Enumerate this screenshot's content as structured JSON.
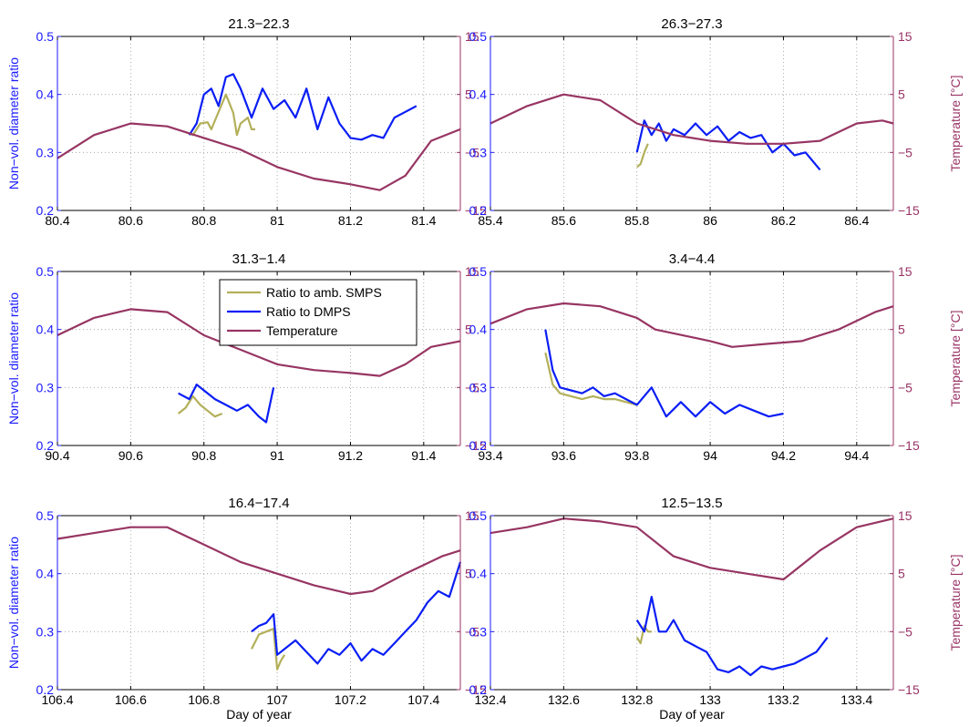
{
  "figure": {
    "x_axis_label": "Day of year",
    "left_axis_label": "Non−vol. diameter ratio",
    "right_axis_label": "Temperature [°C]"
  },
  "legend": {
    "placement": "inside middle-left panel, top-right",
    "entries": [
      "Ratio to amb. SMPS",
      "Ratio to DMPS",
      "Temperature"
    ]
  },
  "colors": {
    "smps": "#b3b05a",
    "dmps": "#0a1ef5",
    "temperature": "#973563",
    "left_axis": "#1a1aff",
    "right_axis": "#993366"
  },
  "chart_data": [
    {
      "type": "line",
      "title": "21.3−22.3",
      "xlim": [
        80.4,
        81.5
      ],
      "xticks": [
        "80.4",
        "80.6",
        "80.8",
        "81",
        "81.2",
        "81.4"
      ],
      "ylim": [
        0.2,
        0.5
      ],
      "yticks": [
        "0.2",
        "0.3",
        "0.4",
        "0.5"
      ],
      "y2lim": [
        -15,
        15
      ],
      "y2ticks": [
        "−15",
        "−5",
        "5",
        "15"
      ],
      "grid": true,
      "series": [
        {
          "name": "Ratio to amb. SMPS",
          "axis": "left",
          "x": [
            80.75,
            80.77,
            80.79,
            80.81,
            80.82,
            80.84,
            80.86,
            80.88,
            80.89,
            80.9,
            80.92,
            80.93,
            80.94
          ],
          "y": [
            0.335,
            0.33,
            0.35,
            0.352,
            0.34,
            0.37,
            0.4,
            0.368,
            0.33,
            0.35,
            0.36,
            0.34,
            0.34
          ]
        },
        {
          "name": "Ratio to DMPS",
          "axis": "left",
          "x": [
            80.76,
            80.78,
            80.8,
            80.82,
            80.84,
            80.86,
            80.88,
            80.9,
            80.93,
            80.96,
            80.99,
            81.02,
            81.05,
            81.08,
            81.11,
            81.14,
            81.17,
            81.2,
            81.23,
            81.26,
            81.29,
            81.32,
            81.35,
            81.38
          ],
          "y": [
            0.33,
            0.35,
            0.4,
            0.41,
            0.38,
            0.43,
            0.435,
            0.41,
            0.36,
            0.41,
            0.375,
            0.39,
            0.36,
            0.41,
            0.34,
            0.395,
            0.35,
            0.325,
            0.322,
            0.33,
            0.325,
            0.36,
            0.37,
            0.38
          ]
        },
        {
          "name": "Temperature",
          "axis": "right",
          "x": [
            80.4,
            80.5,
            80.6,
            80.7,
            80.8,
            80.9,
            81.0,
            81.1,
            81.2,
            81.28,
            81.35,
            81.42,
            81.5
          ],
          "y": [
            -6,
            -2,
            0,
            -0.5,
            -2.5,
            -4.5,
            -7.5,
            -9.5,
            -10.5,
            -11.5,
            -9,
            -3,
            -1
          ]
        }
      ]
    },
    {
      "type": "line",
      "title": "26.3−27.3",
      "xlim": [
        85.4,
        86.5
      ],
      "xticks": [
        "85.4",
        "85.6",
        "85.8",
        "86",
        "86.2",
        "86.4"
      ],
      "ylim": [
        0.2,
        0.5
      ],
      "yticks": [
        "0.2",
        "0.3",
        "0.4",
        "0.5"
      ],
      "y2lim": [
        -15,
        15
      ],
      "y2ticks": [
        "−15",
        "−5",
        "5",
        "15"
      ],
      "grid": true,
      "series": [
        {
          "name": "Ratio to amb. SMPS",
          "axis": "left",
          "x": [
            85.8,
            85.81,
            85.82,
            85.83
          ],
          "y": [
            0.275,
            0.28,
            0.3,
            0.315
          ]
        },
        {
          "name": "Ratio to DMPS",
          "axis": "left",
          "x": [
            85.8,
            85.82,
            85.84,
            85.86,
            85.88,
            85.9,
            85.93,
            85.96,
            85.99,
            86.02,
            86.05,
            86.08,
            86.11,
            86.14,
            86.17,
            86.2,
            86.23,
            86.26,
            86.3
          ],
          "y": [
            0.3,
            0.355,
            0.33,
            0.35,
            0.32,
            0.34,
            0.33,
            0.35,
            0.33,
            0.345,
            0.32,
            0.335,
            0.325,
            0.33,
            0.3,
            0.315,
            0.295,
            0.3,
            0.27
          ]
        },
        {
          "name": "Temperature",
          "axis": "right",
          "x": [
            85.4,
            85.5,
            85.6,
            85.7,
            85.8,
            85.9,
            86.0,
            86.1,
            86.2,
            86.3,
            86.4,
            86.47,
            86.5
          ],
          "y": [
            0,
            3,
            5,
            4,
            0,
            -2,
            -3,
            -3.5,
            -3.5,
            -3,
            0,
            0.5,
            0
          ]
        }
      ]
    },
    {
      "type": "line",
      "title": "31.3−1.4",
      "xlim": [
        90.4,
        91.5
      ],
      "xticks": [
        "90.4",
        "90.6",
        "90.8",
        "91",
        "91.2",
        "91.4"
      ],
      "ylim": [
        0.2,
        0.5
      ],
      "yticks": [
        "0.2",
        "0.3",
        "0.4",
        "0.5"
      ],
      "y2lim": [
        -15,
        15
      ],
      "y2ticks": [
        "−15",
        "−5",
        "5",
        "15"
      ],
      "grid": true,
      "series": [
        {
          "name": "Ratio to amb. SMPS",
          "axis": "left",
          "x": [
            90.73,
            90.75,
            90.77,
            90.79,
            90.81,
            90.83,
            90.85
          ],
          "y": [
            0.255,
            0.265,
            0.285,
            0.27,
            0.26,
            0.25,
            0.255
          ]
        },
        {
          "name": "Ratio to DMPS",
          "axis": "left",
          "x": [
            90.73,
            90.76,
            90.78,
            90.8,
            90.83,
            90.86,
            90.89,
            90.92,
            90.95,
            90.97,
            90.99
          ],
          "y": [
            0.29,
            0.28,
            0.305,
            0.295,
            0.28,
            0.27,
            0.26,
            0.27,
            0.25,
            0.24,
            0.3
          ]
        },
        {
          "name": "Temperature",
          "axis": "right",
          "x": [
            90.4,
            90.5,
            90.6,
            90.7,
            90.8,
            90.9,
            91.0,
            91.1,
            91.2,
            91.28,
            91.35,
            91.42,
            91.5
          ],
          "y": [
            4,
            7,
            8.5,
            8,
            4,
            1.5,
            -1,
            -2,
            -2.5,
            -3,
            -1,
            2,
            3
          ]
        }
      ]
    },
    {
      "type": "line",
      "title": "3.4−4.4",
      "xlim": [
        93.4,
        94.5
      ],
      "xticks": [
        "93.4",
        "93.6",
        "93.8",
        "94",
        "94.2",
        "94.4"
      ],
      "ylim": [
        0.2,
        0.5
      ],
      "yticks": [
        "0.2",
        "0.3",
        "0.4",
        "0.5"
      ],
      "y2lim": [
        -15,
        15
      ],
      "y2ticks": [
        "−15",
        "−5",
        "5",
        "15"
      ],
      "grid": true,
      "series": [
        {
          "name": "Ratio to amb. SMPS",
          "axis": "left",
          "x": [
            93.55,
            93.57,
            93.59,
            93.62,
            93.65,
            93.68,
            93.71,
            93.74,
            93.77,
            93.8
          ],
          "y": [
            0.36,
            0.305,
            0.29,
            0.285,
            0.28,
            0.285,
            0.28,
            0.28,
            0.275,
            0.27
          ]
        },
        {
          "name": "Ratio to DMPS",
          "axis": "left",
          "x": [
            93.55,
            93.57,
            93.59,
            93.62,
            93.65,
            93.68,
            93.71,
            93.74,
            93.77,
            93.8,
            93.84,
            93.88,
            93.92,
            93.96,
            94.0,
            94.04,
            94.08,
            94.12,
            94.16,
            94.2
          ],
          "y": [
            0.4,
            0.33,
            0.3,
            0.295,
            0.29,
            0.3,
            0.285,
            0.29,
            0.28,
            0.27,
            0.3,
            0.25,
            0.275,
            0.25,
            0.275,
            0.255,
            0.27,
            0.26,
            0.25,
            0.255
          ]
        },
        {
          "name": "Temperature",
          "axis": "right",
          "x": [
            93.4,
            93.5,
            93.6,
            93.7,
            93.8,
            93.85,
            94.0,
            94.06,
            94.15,
            94.25,
            94.35,
            94.45,
            94.5
          ],
          "y": [
            6,
            8.5,
            9.5,
            9,
            7,
            5,
            3,
            2,
            2.5,
            3,
            5,
            8,
            9
          ]
        }
      ]
    },
    {
      "type": "line",
      "title": "16.4−17.4",
      "xlim": [
        106.4,
        107.5
      ],
      "xticks": [
        "106.4",
        "106.6",
        "106.8",
        "107",
        "107.2",
        "107.4"
      ],
      "xlabel": "Day of year",
      "ylim": [
        0.2,
        0.5
      ],
      "yticks": [
        "0.2",
        "0.3",
        "0.4",
        "0.5"
      ],
      "y2lim": [
        -15,
        15
      ],
      "y2ticks": [
        "−15",
        "−5",
        "5",
        "15"
      ],
      "grid": true,
      "series": [
        {
          "name": "Ratio to amb. SMPS",
          "axis": "left",
          "x": [
            106.93,
            106.95,
            106.97,
            106.99,
            107.0,
            107.01,
            107.02
          ],
          "y": [
            0.27,
            0.295,
            0.3,
            0.305,
            0.235,
            0.25,
            0.26
          ]
        },
        {
          "name": "Ratio to DMPS",
          "axis": "left",
          "x": [
            106.93,
            106.95,
            106.97,
            106.99,
            107.0,
            107.02,
            107.05,
            107.08,
            107.11,
            107.14,
            107.17,
            107.2,
            107.23,
            107.26,
            107.29,
            107.32,
            107.35,
            107.38,
            107.41,
            107.44,
            107.47,
            107.5
          ],
          "y": [
            0.3,
            0.31,
            0.315,
            0.33,
            0.26,
            0.27,
            0.285,
            0.265,
            0.245,
            0.27,
            0.26,
            0.28,
            0.25,
            0.27,
            0.26,
            0.28,
            0.3,
            0.32,
            0.35,
            0.37,
            0.36,
            0.42
          ]
        },
        {
          "name": "Temperature",
          "axis": "right",
          "x": [
            106.4,
            106.5,
            106.6,
            106.7,
            106.8,
            106.9,
            107.0,
            107.1,
            107.2,
            107.26,
            107.35,
            107.45,
            107.5
          ],
          "y": [
            11,
            12,
            13,
            13,
            10,
            7,
            5,
            3,
            1.5,
            2,
            5,
            8,
            9
          ]
        }
      ]
    },
    {
      "type": "line",
      "title": "12.5−13.5",
      "xlim": [
        132.4,
        133.5
      ],
      "xticks": [
        "132.4",
        "132.6",
        "132.8",
        "133",
        "133.2",
        "133.4"
      ],
      "xlabel": "Day of year",
      "ylim": [
        0.2,
        0.5
      ],
      "yticks": [
        "0.2",
        "0.3",
        "0.4",
        "0.5"
      ],
      "y2lim": [
        -15,
        15
      ],
      "y2ticks": [
        "−15",
        "−5",
        "5",
        "15"
      ],
      "grid": true,
      "series": [
        {
          "name": "Ratio to amb. SMPS",
          "axis": "left",
          "x": [
            132.8,
            132.81,
            132.82,
            132.83,
            132.84
          ],
          "y": [
            0.29,
            0.28,
            0.31,
            0.3,
            0.3
          ]
        },
        {
          "name": "Ratio to DMPS",
          "axis": "left",
          "x": [
            132.8,
            132.82,
            132.84,
            132.86,
            132.88,
            132.9,
            132.93,
            132.96,
            132.99,
            133.02,
            133.05,
            133.08,
            133.11,
            133.14,
            133.17,
            133.2,
            133.23,
            133.26,
            133.29,
            133.32
          ],
          "y": [
            0.32,
            0.3,
            0.36,
            0.3,
            0.3,
            0.32,
            0.285,
            0.275,
            0.265,
            0.235,
            0.23,
            0.24,
            0.225,
            0.24,
            0.235,
            0.24,
            0.245,
            0.255,
            0.265,
            0.29
          ]
        },
        {
          "name": "Temperature",
          "axis": "right",
          "x": [
            132.4,
            132.5,
            132.6,
            132.7,
            132.8,
            132.9,
            133.0,
            133.1,
            133.2,
            133.3,
            133.4,
            133.5
          ],
          "y": [
            12,
            13,
            14.5,
            14,
            13,
            8,
            6,
            5,
            4,
            9,
            13,
            14.5
          ]
        }
      ]
    }
  ]
}
